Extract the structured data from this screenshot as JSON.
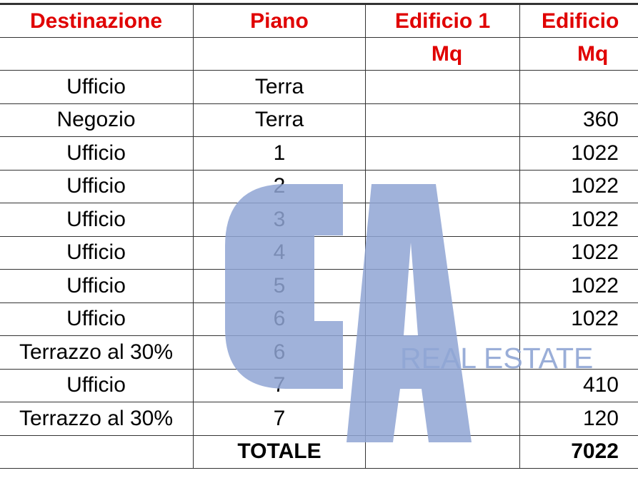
{
  "headers": {
    "row1": [
      "Destinazione",
      "Piano",
      "Edificio 1",
      "Edificio"
    ],
    "row2": [
      "",
      "",
      "Mq",
      "Mq"
    ]
  },
  "rows": [
    {
      "destinazione": "Ufficio",
      "piano": "Terra",
      "edificio1": "",
      "edificio": ""
    },
    {
      "destinazione": "Negozio",
      "piano": "Terra",
      "edificio1": "",
      "edificio": "360"
    },
    {
      "destinazione": "Ufficio",
      "piano": "1",
      "edificio1": "",
      "edificio": "1022"
    },
    {
      "destinazione": "Ufficio",
      "piano": "2",
      "edificio1": "",
      "edificio": "1022"
    },
    {
      "destinazione": "Ufficio",
      "piano": "3",
      "edificio1": "",
      "edificio": "1022"
    },
    {
      "destinazione": "Ufficio",
      "piano": "4",
      "edificio1": "",
      "edificio": "1022"
    },
    {
      "destinazione": "Ufficio",
      "piano": "5",
      "edificio1": "",
      "edificio": "1022"
    },
    {
      "destinazione": "Ufficio",
      "piano": "6",
      "edificio1": "",
      "edificio": "1022"
    },
    {
      "destinazione": "Terrazzo al 30%",
      "piano": "6",
      "edificio1": "",
      "edificio": ""
    },
    {
      "destinazione": "Ufficio",
      "piano": "7",
      "edificio1": "",
      "edificio": "410"
    },
    {
      "destinazione": "Terrazzo al 30%",
      "piano": "7",
      "edificio1": "",
      "edificio": "120"
    }
  ],
  "total": {
    "label": "TOTALE",
    "edificio1": "",
    "edificio": "7022"
  },
  "watermark": {
    "logo": "CA",
    "text": "REAL ESTATE",
    "color": "#8fa5d4"
  },
  "colors": {
    "header": "#e00000"
  }
}
